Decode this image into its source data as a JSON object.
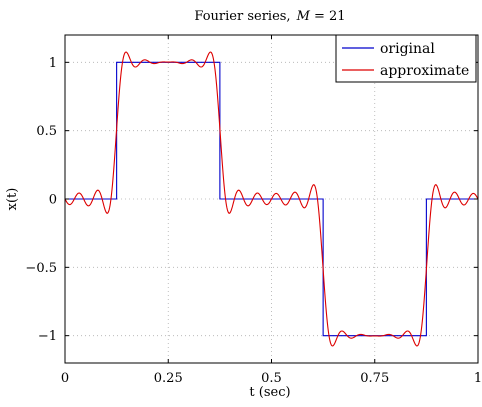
{
  "chart_data": {
    "type": "line",
    "title_prefix": "Fourier series,",
    "title_var": "M",
    "title_eq": " = 21",
    "xlabel": "t (sec)",
    "ylabel": "x(t)",
    "xlim": [
      0,
      1
    ],
    "ylim": [
      -1.2,
      1.2
    ],
    "xticks": [
      0,
      0.25,
      0.5,
      0.75,
      1
    ],
    "xtick_labels": [
      "0",
      "0.25",
      "0.5",
      "0.75",
      "1"
    ],
    "yticks": [
      -1,
      -0.5,
      0,
      0.5,
      1
    ],
    "ytick_labels": [
      "−1",
      "−0.5",
      "0",
      "0.5",
      "1"
    ],
    "grid": true,
    "legend_position": "top-right",
    "harmonics_M": 21,
    "series": [
      {
        "name": "original",
        "color": "#0000cc",
        "x": [
          0,
          0.125,
          0.125,
          0.375,
          0.375,
          0.625,
          0.625,
          0.875,
          0.875,
          1
        ],
        "y": [
          0,
          0,
          1,
          1,
          0,
          0,
          -1,
          -1,
          0,
          0
        ]
      },
      {
        "name": "approximate",
        "color": "#dd0000"
      }
    ]
  }
}
